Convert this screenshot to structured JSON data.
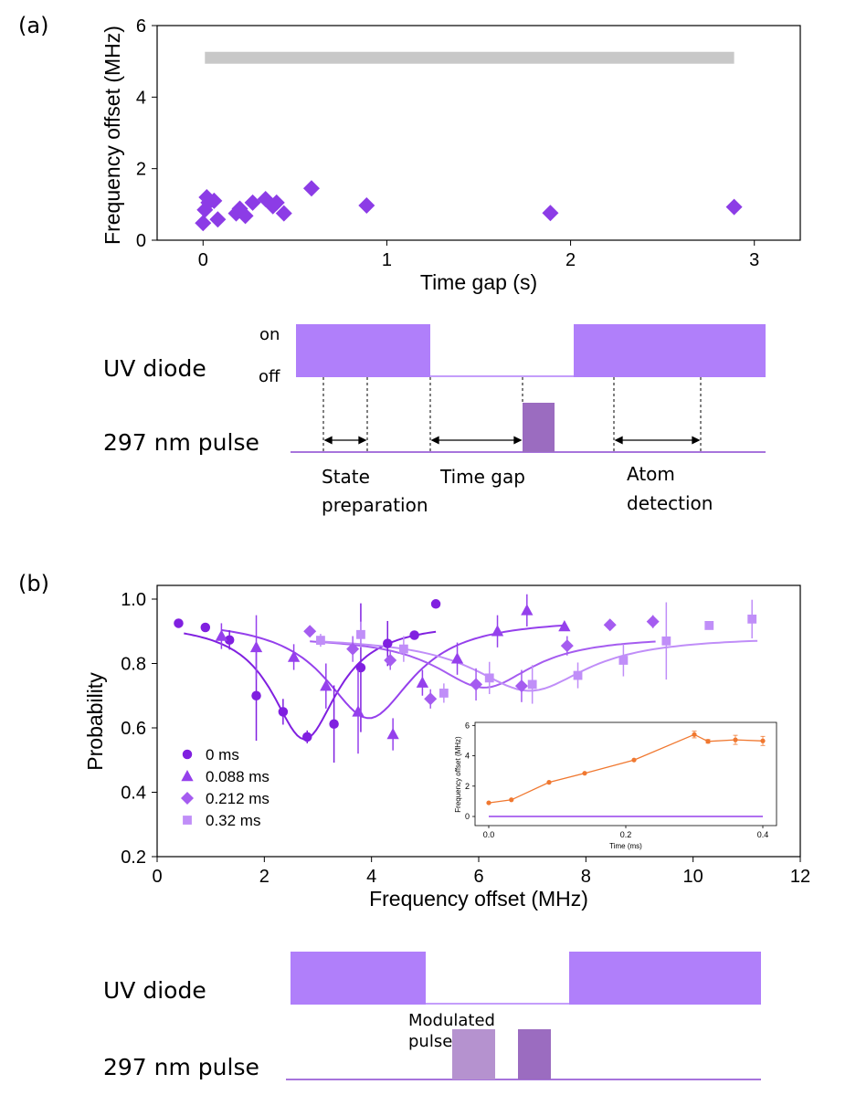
{
  "chart_data": [
    {
      "id": "a",
      "panel_label": "(a)",
      "type": "scatter",
      "xlabel": "Time gap (s)",
      "ylabel": "Frequency offset (MHz)",
      "xlim": [
        -0.25,
        3.25
      ],
      "ylim": [
        0,
        6
      ],
      "xticks": [
        0,
        1,
        2,
        3
      ],
      "yticks": [
        0,
        2,
        4,
        6
      ],
      "band": {
        "x": [
          0.01,
          2.89
        ],
        "y": 5.1,
        "color": "#c8c8c8"
      },
      "series": [
        {
          "name": "frequency offset",
          "marker": "diamond",
          "color": "#8c3ce6",
          "points": [
            [
              0.0,
              0.48
            ],
            [
              0.01,
              0.85
            ],
            [
              0.02,
              1.2
            ],
            [
              0.03,
              1.05
            ],
            [
              0.06,
              1.1
            ],
            [
              0.08,
              0.58
            ],
            [
              0.18,
              0.75
            ],
            [
              0.2,
              0.88
            ],
            [
              0.23,
              0.68
            ],
            [
              0.27,
              1.05
            ],
            [
              0.34,
              1.15
            ],
            [
              0.38,
              0.95
            ],
            [
              0.4,
              1.05
            ],
            [
              0.44,
              0.75
            ],
            [
              0.59,
              1.45
            ],
            [
              0.89,
              0.97
            ],
            [
              1.89,
              0.76
            ],
            [
              2.89,
              0.93
            ]
          ]
        }
      ]
    },
    {
      "id": "b",
      "panel_label": "(b)",
      "type": "scatter",
      "xlabel": "Frequency offset (MHz)",
      "ylabel": "Probability",
      "xlim": [
        0,
        12
      ],
      "ylim": [
        0.2,
        1.05
      ],
      "xticks": [
        0,
        2,
        4,
        6,
        8,
        10,
        12
      ],
      "yticks": [
        0.2,
        0.4,
        0.6,
        0.8,
        1.0
      ],
      "ytick_labels": [
        "0.2",
        "0.4",
        "0.6",
        "0.8",
        "1.0"
      ],
      "series": [
        {
          "name": "0 ms",
          "marker": "circle",
          "color": "#8020e0",
          "points": [
            [
              0.4,
              0.925,
              0
            ],
            [
              0.9,
              0.912,
              0
            ],
            [
              1.35,
              0.873,
              0.03
            ],
            [
              1.85,
              0.7,
              0.14
            ],
            [
              2.35,
              0.65,
              0.04
            ],
            [
              2.8,
              0.572,
              0.02
            ],
            [
              3.3,
              0.612,
              0.12
            ],
            [
              3.8,
              0.787,
              0.2
            ],
            [
              4.3,
              0.862,
              0.07
            ],
            [
              4.8,
              0.888,
              0
            ],
            [
              5.2,
              0.985,
              0
            ]
          ],
          "fit": {
            "x": [
              0.5,
              5.2
            ],
            "min_x": 2.75,
            "min_y": 0.565,
            "base": 0.93,
            "width": 0.75
          }
        },
        {
          "name": "0.088 ms",
          "marker": "triangle",
          "color": "#9540ec",
          "points": [
            [
              1.2,
              0.885,
              0.04
            ],
            [
              1.85,
              0.85,
              0.1
            ],
            [
              2.55,
              0.82,
              0.04
            ],
            [
              3.15,
              0.73,
              0.07
            ],
            [
              3.75,
              0.65,
              0.13
            ],
            [
              4.4,
              0.58,
              0.05
            ],
            [
              4.95,
              0.74,
              0.04
            ],
            [
              5.6,
              0.815,
              0.05
            ],
            [
              6.35,
              0.9,
              0.05
            ],
            [
              6.9,
              0.965,
              0.05
            ],
            [
              7.6,
              0.915,
              0
            ]
          ],
          "fit": {
            "x": [
              1.2,
              7.6
            ],
            "min_x": 3.95,
            "min_y": 0.63,
            "base": 0.94,
            "width": 1.0
          }
        },
        {
          "name": "0.212 ms",
          "marker": "diamond",
          "color": "#a55cf0",
          "points": [
            [
              2.85,
              0.9,
              0
            ],
            [
              3.65,
              0.845,
              0.04
            ],
            [
              4.35,
              0.81,
              0.03
            ],
            [
              5.1,
              0.69,
              0.03
            ],
            [
              5.95,
              0.735,
              0.05
            ],
            [
              6.8,
              0.73,
              0.05
            ],
            [
              7.65,
              0.855,
              0.03
            ],
            [
              8.45,
              0.92,
              0
            ],
            [
              9.25,
              0.93,
              0.02
            ]
          ],
          "fit": {
            "x": [
              2.85,
              9.3
            ],
            "min_x": 6.1,
            "min_y": 0.725,
            "base": 0.885,
            "width": 1.1
          }
        },
        {
          "name": "0.32 ms",
          "marker": "square",
          "color": "#c08ef8",
          "points": [
            [
              3.05,
              0.872,
              0.02
            ],
            [
              3.8,
              0.89,
              0.04
            ],
            [
              4.6,
              0.845,
              0.04
            ],
            [
              5.35,
              0.708,
              0.03
            ],
            [
              6.2,
              0.755,
              0.05
            ],
            [
              7.0,
              0.735,
              0.06
            ],
            [
              7.85,
              0.763,
              0.04
            ],
            [
              8.7,
              0.81,
              0.05
            ],
            [
              9.5,
              0.87,
              0.12
            ],
            [
              10.3,
              0.918,
              0
            ],
            [
              11.1,
              0.938,
              0.06
            ]
          ],
          "fit": {
            "x": [
              3.05,
              11.2
            ],
            "min_x": 6.95,
            "min_y": 0.715,
            "base": 0.885,
            "width": 1.3
          }
        }
      ],
      "legend": {
        "placement": "lower-left"
      }
    },
    {
      "id": "b-inset",
      "type": "line",
      "xlabel": "Time (ms)",
      "ylabel": "Frequency offset (MHz)",
      "xlim": [
        -0.02,
        0.42
      ],
      "ylim": [
        -0.6,
        6.2
      ],
      "xticks": [
        0.0,
        0.2,
        0.4
      ],
      "yticks": [
        0,
        2,
        4,
        6
      ],
      "xtick_labels": [
        "0.0",
        "0.2",
        "0.4"
      ],
      "series": [
        {
          "name": "offset vs time",
          "color": "#f07830",
          "points": [
            [
              0.0,
              0.9,
              0.05
            ],
            [
              0.033,
              1.1,
              0.05
            ],
            [
              0.088,
              2.25,
              0.08
            ],
            [
              0.14,
              2.85,
              0.08
            ],
            [
              0.212,
              3.72,
              0.08
            ],
            [
              0.3,
              5.4,
              0.22
            ],
            [
              0.32,
              4.95,
              0.12
            ],
            [
              0.36,
              5.05,
              0.3
            ],
            [
              0.4,
              4.98,
              0.3
            ]
          ]
        },
        {
          "name": "baseline",
          "color": "#9540ec",
          "y": 0,
          "x": [
            0.0,
            0.4
          ]
        }
      ]
    }
  ],
  "diagram_a": {
    "uv_label": "UV diode",
    "on_label": "on",
    "off_label": "off",
    "pulse_label": "297 nm pulse",
    "state_prep_line1": "State",
    "state_prep_line2": "preparation",
    "time_gap_label": "Time gap",
    "atom_det_line1": "Atom",
    "atom_det_line2": "detection",
    "uv_color": "#b07ffa",
    "pulse_color": "#9b6cc0"
  },
  "diagram_b": {
    "uv_label": "UV diode",
    "pulse_label": "297 nm pulse",
    "modulated_line1": "Modulated",
    "modulated_line2": "pulse",
    "uv_color": "#b07ffa",
    "modulated_color": "#b592cf",
    "pulse_color": "#9b6cc0"
  }
}
